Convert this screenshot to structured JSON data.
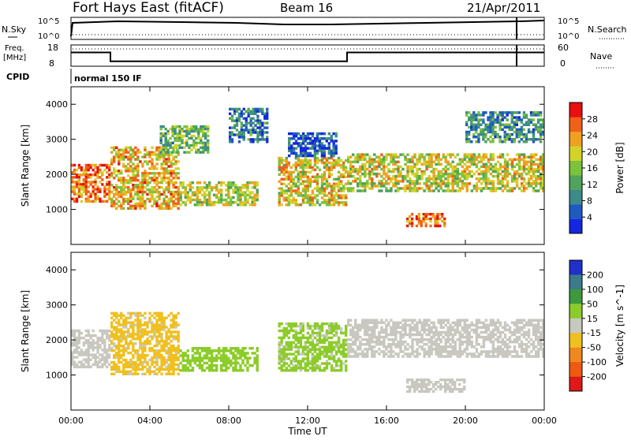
{
  "header": {
    "station": "Fort Hays East (fitACF)",
    "beam": "Beam 16",
    "date": "21/Apr/2011"
  },
  "strips": {
    "nsky_label": "N.Sky",
    "nsky_hi": "10^5",
    "nsky_lo": "10^0",
    "nsearch_label": "N.Search",
    "nsearch_hi": "10^5",
    "nsearch_lo": "10^0",
    "freq_label_1": "Freq.",
    "freq_label_2": "[MHz]",
    "freq_hi": "18",
    "freq_lo": "8",
    "nave_label": "Nave",
    "nave_hi": "60",
    "nave_lo": "0",
    "cpid_label": "CPID",
    "cpid_value": "normal 150 IF"
  },
  "colors": {
    "power_scale": [
      "#1426e0",
      "#1f5ac2",
      "#3c8a8a",
      "#4fa35a",
      "#7cc23c",
      "#d2d22a",
      "#f0a020",
      "#f06018",
      "#e81010"
    ],
    "velocity_scale": [
      "#2030c8",
      "#3c7a8c",
      "#3c9a3c",
      "#8ccc2a",
      "#c8c8c0",
      "#f0c020",
      "#f08820",
      "#f05a10",
      "#e01818"
    ]
  },
  "chart_data": [
    {
      "type": "heatmap",
      "panel": "power",
      "ylabel": "Slant Range [km]",
      "yticks": [
        "1000",
        "2000",
        "3000",
        "4000"
      ],
      "ylim": [
        0,
        4500
      ],
      "colorbar_label": "Power [dB]",
      "colorbar_ticks": [
        "4",
        "8",
        "12",
        "16",
        "20",
        "24",
        "28"
      ],
      "xticks": [
        "00:00",
        "04:00",
        "08:00",
        "12:00",
        "16:00",
        "20:00",
        "00:00"
      ],
      "features": [
        {
          "t": [
            0,
            2
          ],
          "range": [
            1200,
            2300
          ],
          "value": 26
        },
        {
          "t": [
            2,
            5.5
          ],
          "range": [
            1000,
            2800
          ],
          "value": 22
        },
        {
          "t": [
            4.5,
            7
          ],
          "range": [
            2600,
            3400
          ],
          "value": 14
        },
        {
          "t": [
            5.5,
            9.5
          ],
          "range": [
            1100,
            1800
          ],
          "value": 18
        },
        {
          "t": [
            8,
            10
          ],
          "range": [
            2900,
            3900
          ],
          "value": 8
        },
        {
          "t": [
            10.5,
            14
          ],
          "range": [
            1100,
            2500
          ],
          "value": 20
        },
        {
          "t": [
            11,
            13.5
          ],
          "range": [
            2500,
            3200
          ],
          "value": 6
        },
        {
          "t": [
            14,
            24
          ],
          "range": [
            1500,
            2600
          ],
          "value": 19
        },
        {
          "t": [
            17,
            19
          ],
          "range": [
            500,
            900
          ],
          "value": 26
        },
        {
          "t": [
            20,
            24
          ],
          "range": [
            2900,
            3800
          ],
          "value": 10
        }
      ]
    },
    {
      "type": "heatmap",
      "panel": "velocity",
      "ylabel": "Slant Range [km]",
      "yticks": [
        "1000",
        "2000",
        "3000",
        "4000"
      ],
      "ylim": [
        0,
        4500
      ],
      "colorbar_label": "Velocity [m s^-1]",
      "colorbar_ticks": [
        "200",
        "100",
        "50",
        "15",
        "-15",
        "-50",
        "-100",
        "-200"
      ],
      "xlabel": "Time UT",
      "xticks": [
        "00:00",
        "04:00",
        "08:00",
        "12:00",
        "16:00",
        "20:00",
        "00:00"
      ],
      "features": [
        {
          "t": [
            0,
            2
          ],
          "range": [
            1200,
            2300
          ],
          "value": 0
        },
        {
          "t": [
            2,
            5.5
          ],
          "range": [
            1000,
            2800
          ],
          "value": -30
        },
        {
          "t": [
            5.5,
            9.5
          ],
          "range": [
            1100,
            1800
          ],
          "value": 40
        },
        {
          "t": [
            10.5,
            14
          ],
          "range": [
            1100,
            2500
          ],
          "value": 30
        },
        {
          "t": [
            14,
            24
          ],
          "range": [
            1500,
            2600
          ],
          "value": 0
        },
        {
          "t": [
            17,
            20
          ],
          "range": [
            500,
            900
          ],
          "value": 0
        }
      ]
    }
  ],
  "freq_steps": [
    {
      "t": [
        0,
        2
      ],
      "value": 15
    },
    {
      "t": [
        2,
        14
      ],
      "value": 10.5
    },
    {
      "t": [
        14,
        24
      ],
      "value": 15
    }
  ]
}
